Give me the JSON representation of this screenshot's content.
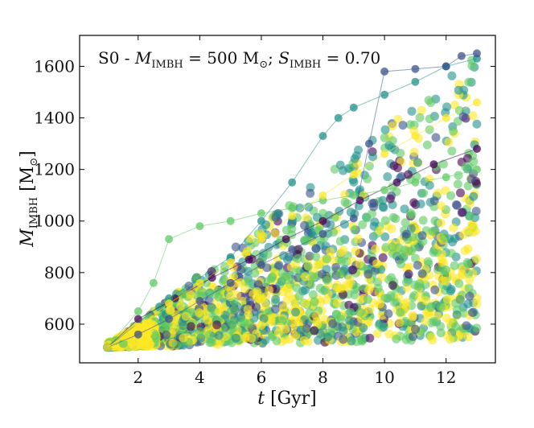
{
  "chart_data": {
    "type": "scatter",
    "title": {
      "prefix": "S0 - ",
      "m_symbol": "M",
      "m_subscript": "IMBH",
      "m_value": " = 500 M",
      "sun_symbol": "⊙",
      "separator": "; ",
      "s_symbol": "S",
      "s_subscript": "IMBH",
      "s_value": " = 0.70"
    },
    "xlabel": {
      "symbol": "t",
      "unit": " [Gyr]"
    },
    "ylabel": {
      "symbol": "M",
      "subscript": "IMBH",
      "unit_open": " [M",
      "sun_symbol": "⊙",
      "unit_close": "]"
    },
    "xlim": [
      0.1,
      13.6
    ],
    "ylim": [
      450,
      1720
    ],
    "xticks": [
      2,
      4,
      6,
      8,
      10,
      12
    ],
    "yticks": [
      600,
      800,
      1000,
      1200,
      1400,
      1600
    ],
    "xtick_labels": [
      "2",
      "4",
      "6",
      "8",
      "10",
      "12"
    ],
    "ytick_labels": [
      "600",
      "800",
      "1000",
      "1200",
      "1400",
      "1600"
    ],
    "colormap": [
      "#440154",
      "#3b528b",
      "#21918c",
      "#5ec962",
      "#fde725"
    ],
    "envelope": {
      "t_start": 1.0,
      "t_end": 13.0,
      "m_start": 510,
      "lower_end": 540,
      "median_end": 960,
      "upper_end": 1640
    },
    "highlight_tracks": [
      {
        "x": [
          1.0,
          2.0,
          3.2,
          4.4,
          5.6,
          6.8,
          8.0,
          9.2,
          10.4,
          11.6,
          13.0
        ],
        "y": [
          510,
          620,
          700,
          780,
          850,
          930,
          1000,
          1080,
          1150,
          1220,
          1280
        ]
      },
      {
        "x": [
          1.0,
          3.0,
          5.0,
          6.0,
          7.0,
          8.0,
          8.5,
          9.0,
          10.0,
          11.0,
          12.0,
          13.0
        ],
        "y": [
          510,
          700,
          860,
          1000,
          1150,
          1330,
          1400,
          1440,
          1490,
          1540,
          1600,
          1630
        ]
      },
      {
        "x": [
          1.0,
          2.0,
          2.5,
          3.0,
          4.0,
          5.0,
          6.0,
          7.0,
          8.0,
          9.0,
          10.0,
          11.0,
          12.0,
          13.0
        ],
        "y": [
          510,
          650,
          760,
          930,
          980,
          1000,
          1030,
          1050,
          1080,
          1100,
          1120,
          1150,
          1170,
          1200
        ]
      },
      {
        "x": [
          1.0,
          2.0,
          3.0,
          4.0,
          5.0,
          6.0,
          7.0,
          8.0,
          9.0,
          9.5,
          10.0,
          11.0,
          12.0,
          12.5,
          13.0
        ],
        "y": [
          510,
          560,
          620,
          690,
          760,
          830,
          890,
          950,
          1010,
          1300,
          1580,
          1590,
          1600,
          1640,
          1650
        ]
      },
      {
        "x": [
          1.0,
          2.0,
          3.0,
          4.0,
          5.0,
          6.0,
          7.0,
          8.0,
          9.0,
          10.0,
          11.0,
          12.0,
          13.0
        ],
        "y": [
          510,
          590,
          680,
          760,
          840,
          930,
          1020,
          1100,
          1180,
          1260,
          1330,
          1400,
          1460
        ]
      }
    ]
  }
}
